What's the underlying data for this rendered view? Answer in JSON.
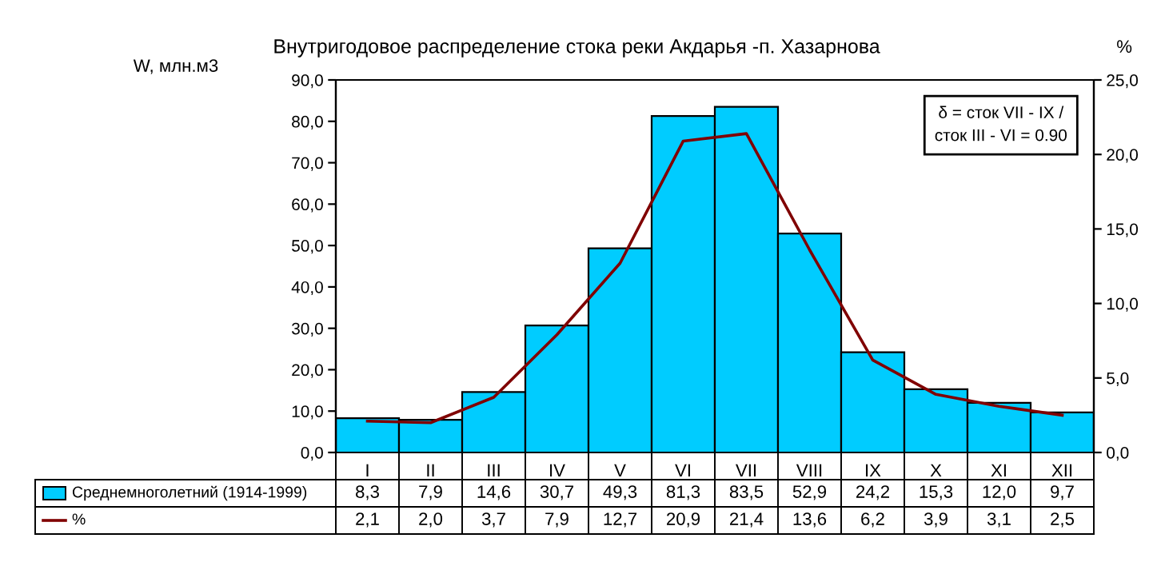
{
  "chart_data": {
    "type": "bar",
    "title": "Внутригодовое распределение стока реки Акдарья -п. Хазарнова",
    "ylabel": "W, млн.м3",
    "y2label": "%",
    "categories": [
      "I",
      "II",
      "III",
      "IV",
      "V",
      "VI",
      "VII",
      "VIII",
      "IX",
      "X",
      "XI",
      "XII"
    ],
    "series": [
      {
        "name": "Среднемноголетний (1914-1999)",
        "color": "#00ccff",
        "values": [
          8.3,
          7.9,
          14.6,
          30.7,
          49.3,
          81.3,
          83.5,
          52.9,
          24.2,
          15.3,
          12.0,
          9.7
        ],
        "value_labels": [
          "8,3",
          "7,9",
          "14,6",
          "30,7",
          "49,3",
          "81,3",
          "83,5",
          "52,9",
          "24,2",
          "15,3",
          "12,0",
          "9,7"
        ]
      },
      {
        "name": "%",
        "type": "line",
        "axis": "y2",
        "color": "#800000",
        "values": [
          2.1,
          2.0,
          3.7,
          7.9,
          12.7,
          20.9,
          21.4,
          13.6,
          6.2,
          3.9,
          3.1,
          2.5
        ],
        "value_labels": [
          "2,1",
          "2,0",
          "3,7",
          "7,9",
          "12,7",
          "20,9",
          "21,4",
          "13,6",
          "6,2",
          "3,9",
          "3,1",
          "2,5"
        ]
      }
    ],
    "ylim": [
      0,
      90
    ],
    "yticks": [
      {
        "value": 0,
        "label": "0,0"
      },
      {
        "value": 10,
        "label": "10,0"
      },
      {
        "value": 20,
        "label": "20,0"
      },
      {
        "value": 30,
        "label": "30,0"
      },
      {
        "value": 40,
        "label": "40,0"
      },
      {
        "value": 50,
        "label": "50,0"
      },
      {
        "value": 60,
        "label": "60,0"
      },
      {
        "value": 70,
        "label": "70,0"
      },
      {
        "value": 80,
        "label": "80,0"
      },
      {
        "value": 90,
        "label": "90,0"
      }
    ],
    "y2lim": [
      0,
      25
    ],
    "y2ticks": [
      {
        "value": 0,
        "label": "0,0"
      },
      {
        "value": 5,
        "label": "5,0"
      },
      {
        "value": 10,
        "label": "10,0"
      },
      {
        "value": 15,
        "label": "15,0"
      },
      {
        "value": 20,
        "label": "20,0"
      },
      {
        "value": 25,
        "label": "25,0"
      }
    ],
    "annotations": [
      "δ = сток VII - IX /\nсток III - VI = 0.90"
    ],
    "legend": "bottom left",
    "grid": false,
    "marker": "none",
    "line_style": "solid"
  }
}
